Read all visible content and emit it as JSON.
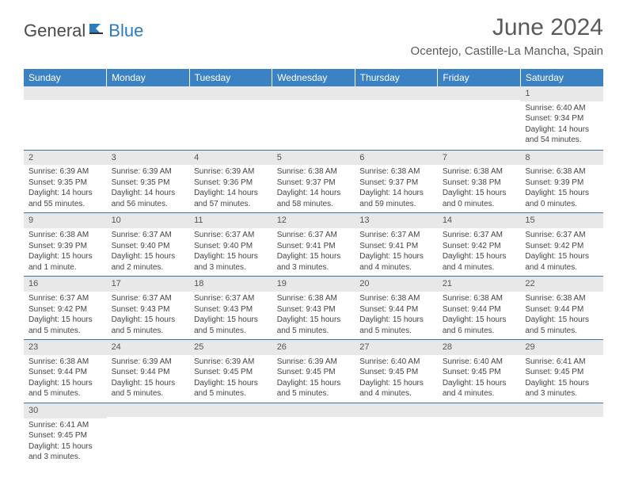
{
  "header": {
    "logo_general": "General",
    "logo_blue": "Blue",
    "month_title": "June 2024",
    "location": "Ocentejo, Castille-La Mancha, Spain"
  },
  "colors": {
    "header_bg": "#3b82c4",
    "header_text": "#ffffff",
    "daynum_bg": "#e8e8e8",
    "border": "#3b6fa8",
    "logo_blue": "#2b7bbf",
    "text": "#444444"
  },
  "typography": {
    "month_title_size": 30,
    "location_size": 15,
    "weekday_size": 12,
    "daynum_size": 11,
    "body_size": 10
  },
  "weekdays": [
    "Sunday",
    "Monday",
    "Tuesday",
    "Wednesday",
    "Thursday",
    "Friday",
    "Saturday"
  ],
  "weeks": [
    [
      null,
      null,
      null,
      null,
      null,
      null,
      {
        "n": "1",
        "sunrise": "Sunrise: 6:40 AM",
        "sunset": "Sunset: 9:34 PM",
        "daylight": "Daylight: 14 hours and 54 minutes."
      }
    ],
    [
      {
        "n": "2",
        "sunrise": "Sunrise: 6:39 AM",
        "sunset": "Sunset: 9:35 PM",
        "daylight": "Daylight: 14 hours and 55 minutes."
      },
      {
        "n": "3",
        "sunrise": "Sunrise: 6:39 AM",
        "sunset": "Sunset: 9:35 PM",
        "daylight": "Daylight: 14 hours and 56 minutes."
      },
      {
        "n": "4",
        "sunrise": "Sunrise: 6:39 AM",
        "sunset": "Sunset: 9:36 PM",
        "daylight": "Daylight: 14 hours and 57 minutes."
      },
      {
        "n": "5",
        "sunrise": "Sunrise: 6:38 AM",
        "sunset": "Sunset: 9:37 PM",
        "daylight": "Daylight: 14 hours and 58 minutes."
      },
      {
        "n": "6",
        "sunrise": "Sunrise: 6:38 AM",
        "sunset": "Sunset: 9:37 PM",
        "daylight": "Daylight: 14 hours and 59 minutes."
      },
      {
        "n": "7",
        "sunrise": "Sunrise: 6:38 AM",
        "sunset": "Sunset: 9:38 PM",
        "daylight": "Daylight: 15 hours and 0 minutes."
      },
      {
        "n": "8",
        "sunrise": "Sunrise: 6:38 AM",
        "sunset": "Sunset: 9:39 PM",
        "daylight": "Daylight: 15 hours and 0 minutes."
      }
    ],
    [
      {
        "n": "9",
        "sunrise": "Sunrise: 6:38 AM",
        "sunset": "Sunset: 9:39 PM",
        "daylight": "Daylight: 15 hours and 1 minute."
      },
      {
        "n": "10",
        "sunrise": "Sunrise: 6:37 AM",
        "sunset": "Sunset: 9:40 PM",
        "daylight": "Daylight: 15 hours and 2 minutes."
      },
      {
        "n": "11",
        "sunrise": "Sunrise: 6:37 AM",
        "sunset": "Sunset: 9:40 PM",
        "daylight": "Daylight: 15 hours and 3 minutes."
      },
      {
        "n": "12",
        "sunrise": "Sunrise: 6:37 AM",
        "sunset": "Sunset: 9:41 PM",
        "daylight": "Daylight: 15 hours and 3 minutes."
      },
      {
        "n": "13",
        "sunrise": "Sunrise: 6:37 AM",
        "sunset": "Sunset: 9:41 PM",
        "daylight": "Daylight: 15 hours and 4 minutes."
      },
      {
        "n": "14",
        "sunrise": "Sunrise: 6:37 AM",
        "sunset": "Sunset: 9:42 PM",
        "daylight": "Daylight: 15 hours and 4 minutes."
      },
      {
        "n": "15",
        "sunrise": "Sunrise: 6:37 AM",
        "sunset": "Sunset: 9:42 PM",
        "daylight": "Daylight: 15 hours and 4 minutes."
      }
    ],
    [
      {
        "n": "16",
        "sunrise": "Sunrise: 6:37 AM",
        "sunset": "Sunset: 9:42 PM",
        "daylight": "Daylight: 15 hours and 5 minutes."
      },
      {
        "n": "17",
        "sunrise": "Sunrise: 6:37 AM",
        "sunset": "Sunset: 9:43 PM",
        "daylight": "Daylight: 15 hours and 5 minutes."
      },
      {
        "n": "18",
        "sunrise": "Sunrise: 6:37 AM",
        "sunset": "Sunset: 9:43 PM",
        "daylight": "Daylight: 15 hours and 5 minutes."
      },
      {
        "n": "19",
        "sunrise": "Sunrise: 6:38 AM",
        "sunset": "Sunset: 9:43 PM",
        "daylight": "Daylight: 15 hours and 5 minutes."
      },
      {
        "n": "20",
        "sunrise": "Sunrise: 6:38 AM",
        "sunset": "Sunset: 9:44 PM",
        "daylight": "Daylight: 15 hours and 5 minutes."
      },
      {
        "n": "21",
        "sunrise": "Sunrise: 6:38 AM",
        "sunset": "Sunset: 9:44 PM",
        "daylight": "Daylight: 15 hours and 6 minutes."
      },
      {
        "n": "22",
        "sunrise": "Sunrise: 6:38 AM",
        "sunset": "Sunset: 9:44 PM",
        "daylight": "Daylight: 15 hours and 5 minutes."
      }
    ],
    [
      {
        "n": "23",
        "sunrise": "Sunrise: 6:38 AM",
        "sunset": "Sunset: 9:44 PM",
        "daylight": "Daylight: 15 hours and 5 minutes."
      },
      {
        "n": "24",
        "sunrise": "Sunrise: 6:39 AM",
        "sunset": "Sunset: 9:44 PM",
        "daylight": "Daylight: 15 hours and 5 minutes."
      },
      {
        "n": "25",
        "sunrise": "Sunrise: 6:39 AM",
        "sunset": "Sunset: 9:45 PM",
        "daylight": "Daylight: 15 hours and 5 minutes."
      },
      {
        "n": "26",
        "sunrise": "Sunrise: 6:39 AM",
        "sunset": "Sunset: 9:45 PM",
        "daylight": "Daylight: 15 hours and 5 minutes."
      },
      {
        "n": "27",
        "sunrise": "Sunrise: 6:40 AM",
        "sunset": "Sunset: 9:45 PM",
        "daylight": "Daylight: 15 hours and 4 minutes."
      },
      {
        "n": "28",
        "sunrise": "Sunrise: 6:40 AM",
        "sunset": "Sunset: 9:45 PM",
        "daylight": "Daylight: 15 hours and 4 minutes."
      },
      {
        "n": "29",
        "sunrise": "Sunrise: 6:41 AM",
        "sunset": "Sunset: 9:45 PM",
        "daylight": "Daylight: 15 hours and 3 minutes."
      }
    ],
    [
      {
        "n": "30",
        "sunrise": "Sunrise: 6:41 AM",
        "sunset": "Sunset: 9:45 PM",
        "daylight": "Daylight: 15 hours and 3 minutes."
      },
      null,
      null,
      null,
      null,
      null,
      null
    ]
  ]
}
